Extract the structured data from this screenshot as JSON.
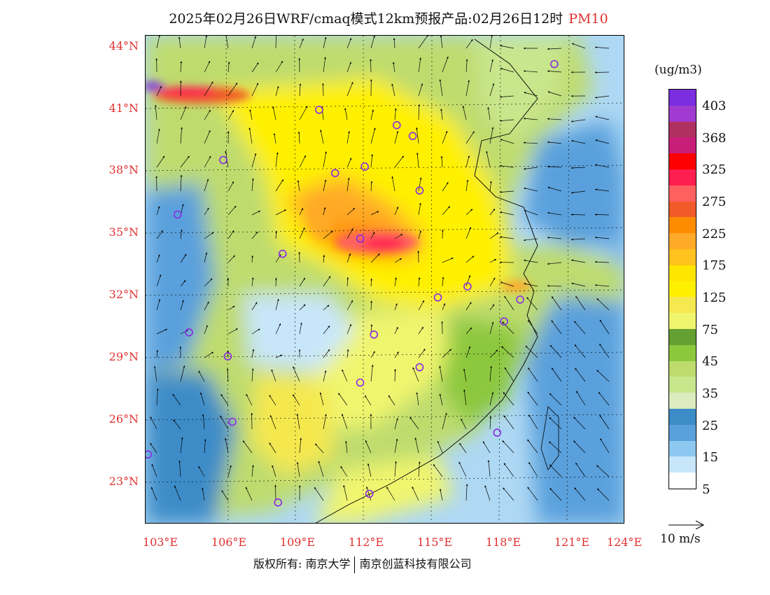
{
  "title": "2025年02月26日WRF/cmaq模式12km预报产品:02月26日12时",
  "variable": "PM10",
  "lat_labels": [
    "44°N",
    "41°N",
    "38°N",
    "35°N",
    "32°N",
    "29°N",
    "26°N",
    "23°N"
  ],
  "lon_labels": [
    "103°E",
    "106°E",
    "109°E",
    "112°E",
    "115°E",
    "118°E",
    "121°E",
    "124°E"
  ],
  "colorbar": {
    "unit": "(ug/m3)",
    "colors": [
      "#7b2ee0",
      "#a03ad0",
      "#b03060",
      "#c81e7a",
      "#ff0000",
      "#ff1e50",
      "#ff6060",
      "#f05a28",
      "#ff8c00",
      "#ffaa28",
      "#ffc21e",
      "#ffe600",
      "#fff000",
      "#f5e850",
      "#f0f56e",
      "#64a032",
      "#8cc83c",
      "#bedc6e",
      "#c8e68c",
      "#dcebc0",
      "#3c8cc8",
      "#5aa0dc",
      "#8cc8f0",
      "#c8e6fa",
      "#ffffff"
    ],
    "tick_labels": [
      "403",
      "368",
      "325",
      "275",
      "225",
      "175",
      "125",
      "75",
      "45",
      "35",
      "25",
      "15",
      "5"
    ]
  },
  "legend": {
    "wind_scale": "10 m/s"
  },
  "stations": [
    [
      120.8,
      42.9
    ],
    [
      110.5,
      40.8
    ],
    [
      113.9,
      40.1
    ],
    [
      114.6,
      39.6
    ],
    [
      106.3,
      38.5
    ],
    [
      111.2,
      37.9
    ],
    [
      112.5,
      38.2
    ],
    [
      114.9,
      37.1
    ],
    [
      104.3,
      36.0
    ],
    [
      112.3,
      34.9
    ],
    [
      108.9,
      34.2
    ],
    [
      117.0,
      32.7
    ],
    [
      115.7,
      32.2
    ],
    [
      119.3,
      32.1
    ],
    [
      118.6,
      31.1
    ],
    [
      104.8,
      30.6
    ],
    [
      112.9,
      30.5
    ],
    [
      106.5,
      29.5
    ],
    [
      114.9,
      29.0
    ],
    [
      112.3,
      28.3
    ],
    [
      106.7,
      26.5
    ],
    [
      118.3,
      26.0
    ],
    [
      103.0,
      25.0
    ],
    [
      112.7,
      23.2
    ],
    [
      108.7,
      22.8
    ]
  ],
  "footer": {
    "rights": "版权所有: 南京大学",
    "company": "南京创蓝科技有限公司"
  }
}
